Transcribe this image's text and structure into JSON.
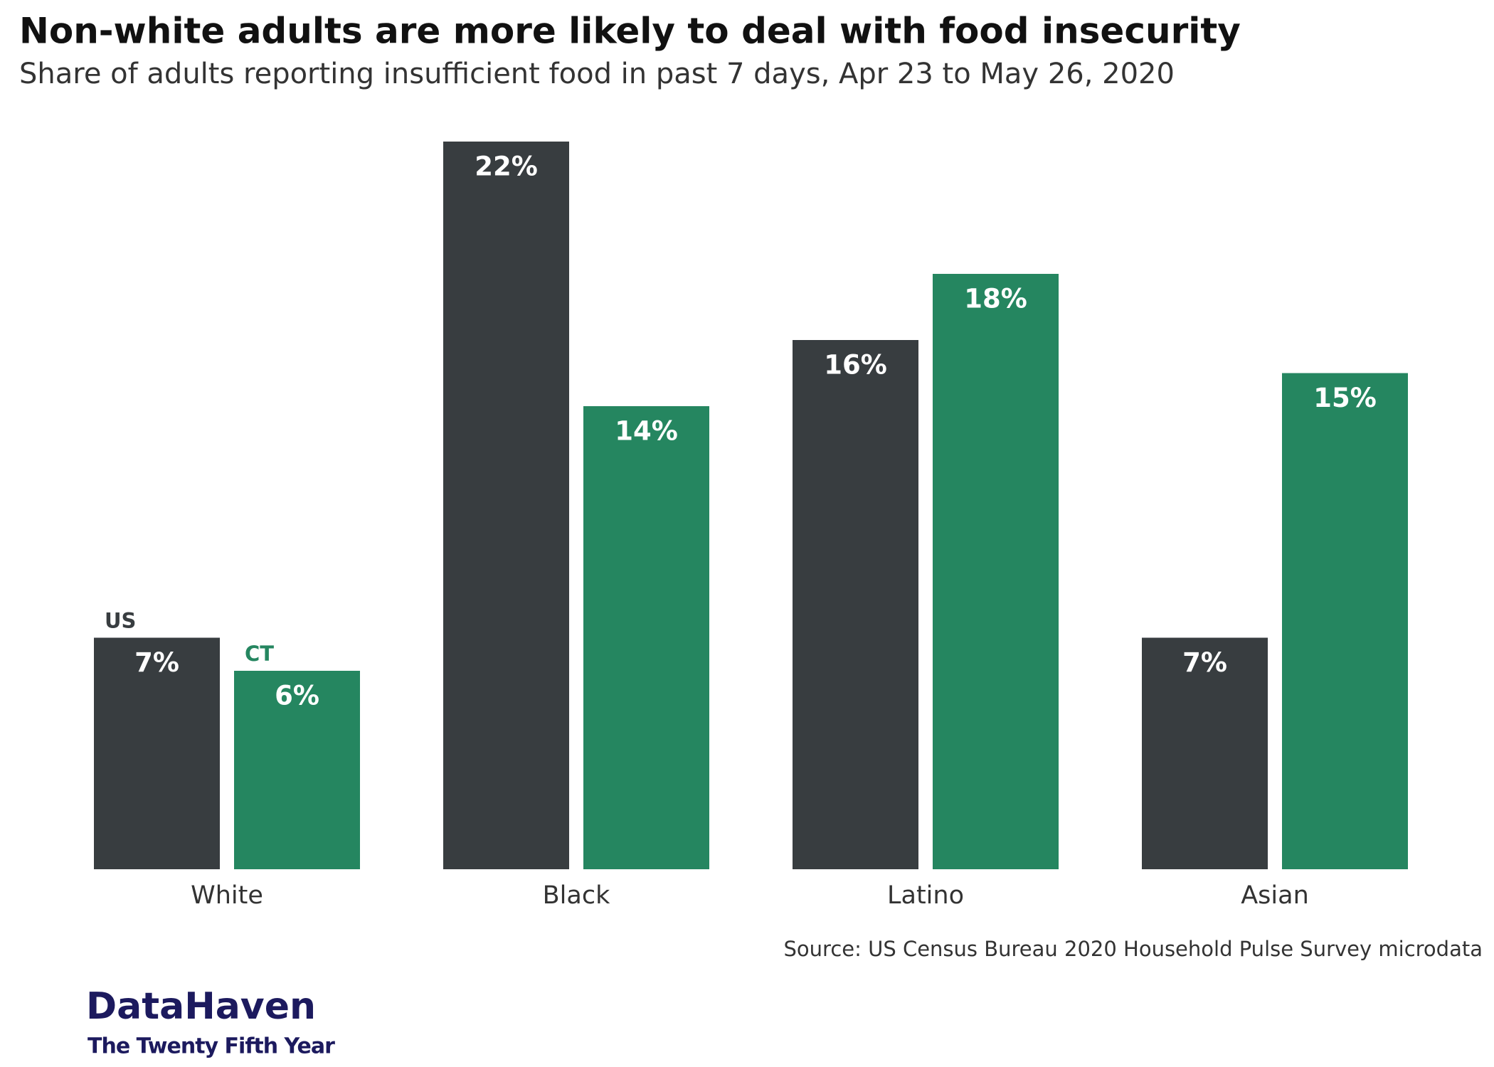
{
  "chart_data": {
    "type": "bar",
    "title": "Non-white adults are more likely to deal with food insecurity",
    "subtitle": "Share of adults reporting insufficient food in past 7 days, Apr 23 to May 26, 2020",
    "categories": [
      "White",
      "Black",
      "Latino",
      "Asian"
    ],
    "series": [
      {
        "name": "US",
        "color": "#383d40",
        "values": [
          7,
          22,
          16,
          7
        ],
        "value_labels": [
          "7%",
          "22%",
          "16%",
          "7%"
        ]
      },
      {
        "name": "CT",
        "color": "#258660",
        "values": [
          6,
          14,
          18,
          15
        ],
        "value_labels": [
          "6%",
          "14%",
          "18%",
          "15%"
        ]
      }
    ],
    "source": "Source: US Census Bureau 2020 Household Pulse Survey microdata",
    "logo": {
      "name": "DataHaven",
      "tagline": "The Twenty Fifth Year"
    }
  }
}
